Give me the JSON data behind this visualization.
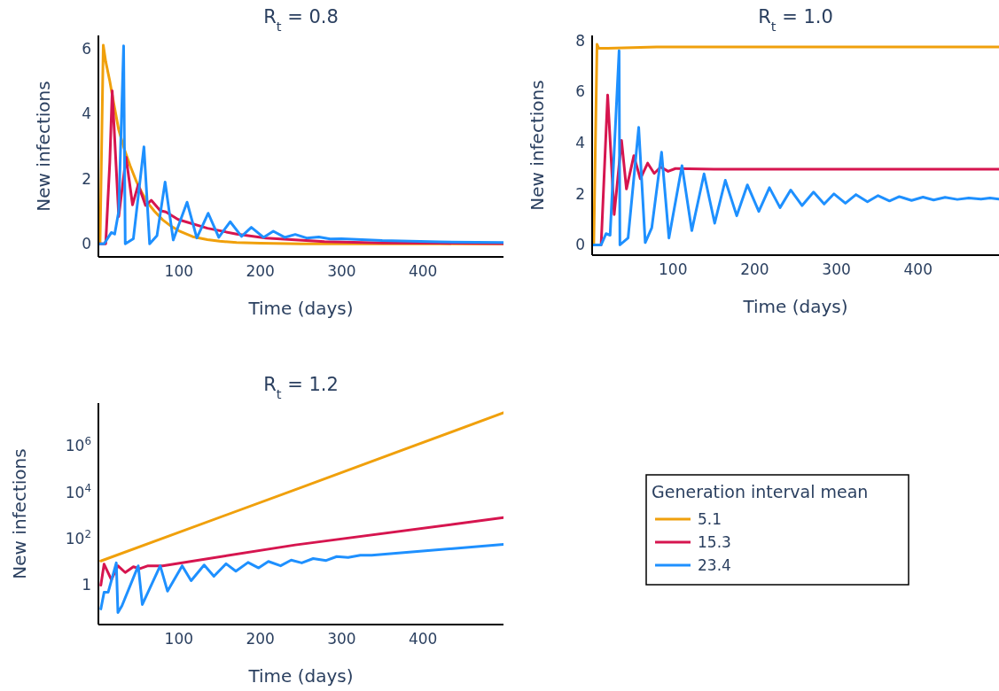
{
  "chart_data": [
    {
      "type": "line",
      "title": "R$_{t}$ = 0.8",
      "xlabel": "Time (days)",
      "ylabel": "New infections",
      "xlim": [
        1,
        499
      ],
      "ylim": [
        -0.4,
        6.4
      ],
      "xticks": [
        100,
        200,
        300,
        400
      ],
      "yticks": [
        0,
        2,
        4,
        6
      ],
      "legend": false,
      "series": [
        {
          "color": "#f0a00c",
          "x": [
            1,
            3,
            7,
            10,
            15,
            20,
            26,
            33,
            40,
            48,
            55,
            62,
            70,
            80,
            90,
            100,
            117,
            135,
            150,
            171,
            200,
            250,
            300,
            400,
            499
          ],
          "values": [
            0,
            0,
            6.1,
            5.6,
            5.0,
            4.3,
            3.5,
            2.9,
            2.4,
            1.9,
            1.55,
            1.25,
            1.0,
            0.74,
            0.55,
            0.4,
            0.22,
            0.13,
            0.08,
            0.04,
            0.02,
            0,
            0,
            0,
            0
          ]
        },
        {
          "color": "#d6154f",
          "x": [
            1,
            10,
            15,
            18,
            26,
            35,
            43,
            50,
            59,
            66,
            77,
            84,
            99,
            135,
            171,
            207,
            279,
            350,
            420,
            499
          ],
          "values": [
            0,
            0,
            2.5,
            4.7,
            0.84,
            2.66,
            1.2,
            1.82,
            1.18,
            1.34,
            1.02,
            0.98,
            0.75,
            0.48,
            0.3,
            0.18,
            0.07,
            0.03,
            0.02,
            0.01
          ]
        },
        {
          "color": "#1e90ff",
          "x": [
            1,
            8,
            17,
            21,
            26,
            32,
            34,
            44,
            57,
            64,
            73,
            83,
            93,
            110,
            122,
            136,
            149,
            163,
            177,
            189,
            204,
            216,
            230,
            243,
            257,
            272,
            286,
            300,
            350,
            420,
            499
          ],
          "values": [
            0,
            0,
            0.35,
            0.3,
            1.0,
            6.08,
            0,
            0.16,
            2.98,
            0,
            0.25,
            1.9,
            0.12,
            1.28,
            0.18,
            0.94,
            0.2,
            0.68,
            0.23,
            0.51,
            0.2,
            0.39,
            0.2,
            0.29,
            0.18,
            0.21,
            0.15,
            0.16,
            0.1,
            0.06,
            0.04
          ]
        }
      ]
    },
    {
      "type": "line",
      "title": "R$_{t}$ = 1.0",
      "xlabel": "Time (days)",
      "ylabel": "New infections",
      "xlim": [
        1,
        499
      ],
      "ylim": [
        -0.4,
        8.2
      ],
      "xticks": [
        100,
        200,
        300,
        400
      ],
      "yticks": [
        0,
        2,
        4,
        6,
        8
      ],
      "legend": false,
      "series": [
        {
          "color": "#f0a00c",
          "x": [
            1,
            3,
            7,
            9,
            20,
            80,
            499
          ],
          "values": [
            0,
            0,
            7.85,
            7.7,
            7.7,
            7.75,
            7.75
          ]
        },
        {
          "color": "#d6154f",
          "x": [
            1,
            12,
            20,
            28,
            37,
            43,
            52,
            60,
            69,
            77,
            85,
            94,
            103,
            150,
            499
          ],
          "values": [
            0,
            0,
            5.87,
            1.19,
            4.09,
            2.19,
            3.49,
            2.59,
            3.2,
            2.8,
            3.05,
            2.88,
            2.99,
            2.96,
            2.96
          ]
        },
        {
          "color": "#1e90ff",
          "x": [
            1,
            12,
            18,
            23,
            34,
            35,
            45,
            58,
            66,
            74,
            86,
            95,
            111,
            123,
            138,
            151,
            164,
            178,
            191,
            205,
            218,
            231,
            244,
            258,
            272,
            285,
            297,
            311,
            324,
            338,
            351,
            365,
            377,
            392,
            406,
            419,
            433,
            448,
            462,
            477,
            488,
            499
          ],
          "values": [
            0,
            0,
            0.44,
            0.38,
            7.6,
            0,
            0.27,
            4.6,
            0.09,
            0.67,
            3.63,
            0.27,
            3.1,
            0.56,
            2.78,
            0.85,
            2.53,
            1.14,
            2.35,
            1.31,
            2.24,
            1.46,
            2.15,
            1.54,
            2.07,
            1.6,
            2.0,
            1.63,
            1.97,
            1.69,
            1.93,
            1.72,
            1.89,
            1.74,
            1.87,
            1.76,
            1.86,
            1.78,
            1.84,
            1.79,
            1.84,
            1.79
          ]
        }
      ]
    },
    {
      "type": "line",
      "title": "R$_{t}$ = 1.2",
      "xlabel": "Time (days)",
      "ylabel": "New infections",
      "log": true,
      "xlim": [
        1,
        499
      ],
      "ylim": [
        0.02,
        70000000
      ],
      "xticks": [
        100,
        200,
        300,
        400
      ],
      "yticks": [
        1,
        {
          "value": 100,
          "label": "10$^{2}$"
        },
        {
          "value": 10000,
          "label": "10$^{4}$"
        },
        {
          "value": 1000000,
          "label": "10$^{6}$"
        }
      ],
      "legend": "right",
      "legend_title": "Generation interval mean",
      "series": [
        {
          "name": "5.1",
          "color": "#f0a00c",
          "x": [
            4,
            250,
            499
          ],
          "values": [
            11,
            16000,
            27000000
          ]
        },
        {
          "name": "15.3",
          "color": "#d6154f",
          "x": [
            4,
            8,
            17,
            25,
            34,
            44,
            52,
            62,
            80,
            243,
            499
          ],
          "values": [
            1,
            8,
            1.7,
            6.8,
            3.5,
            6.2,
            5.1,
            6.8,
            6.8,
            54,
            810
          ]
        },
        {
          "name": "23.4",
          "color": "#1e90ff",
          "x": [
            4,
            8,
            13,
            23,
            25,
            30,
            50,
            55,
            77,
            86,
            104,
            115,
            131,
            143,
            158,
            170,
            185,
            198,
            210,
            225,
            238,
            251,
            265,
            281,
            294,
            308,
            323,
            337,
            499
          ],
          "values": [
            0.094,
            0.49,
            0.49,
            9.1,
            0.066,
            0.13,
            6.8,
            0.145,
            6.8,
            0.55,
            6.8,
            1.55,
            7.4,
            2.4,
            8.3,
            4.0,
            9.5,
            5.5,
            10.5,
            6.8,
            12,
            9.1,
            14,
            11.5,
            17,
            15.5,
            19.5,
            19.5,
            57
          ]
        }
      ]
    }
  ]
}
